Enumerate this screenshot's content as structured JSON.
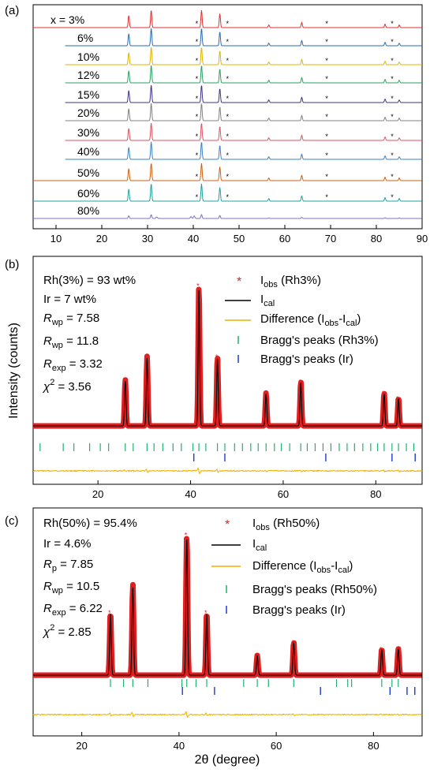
{
  "figure": {
    "xlabel": "2θ (degree)",
    "ylabel": "Intensity (counts)"
  },
  "chart_data": [
    {
      "panel": "(a)",
      "type": "line",
      "xlim": [
        5,
        90
      ],
      "x_ticks": [
        10,
        20,
        30,
        40,
        50,
        60,
        70,
        80,
        90
      ],
      "peaks_primary": [
        25.9,
        30.8,
        41.8,
        45.8,
        56.5,
        63.7,
        81.9,
        85.0
      ],
      "peaks_secondary": [
        40.8,
        47.5,
        69.2,
        83.5
      ],
      "series": [
        {
          "name": "x = 3%",
          "color": "#e03030",
          "x_start": 5
        },
        {
          "name": "6%",
          "color": "#2a6ab5",
          "x_start": 12
        },
        {
          "name": "10%",
          "color": "#e0b400",
          "x_start": 12
        },
        {
          "name": "12%",
          "color": "#2aa060",
          "x_start": 12
        },
        {
          "name": "15%",
          "color": "#40308a",
          "x_start": 12
        },
        {
          "name": "20%",
          "color": "#808080",
          "x_start": 12
        },
        {
          "name": "30%",
          "color": "#e05060",
          "x_start": 12
        },
        {
          "name": "40%",
          "color": "#3a80c8",
          "x_start": 12
        },
        {
          "name": "50%",
          "color": "#d06010",
          "x_start": 5
        },
        {
          "name": "60%",
          "color": "#20a0a0",
          "x_start": 5
        },
        {
          "name": "80%",
          "color": "#8070c0",
          "x_start": 5
        }
      ]
    },
    {
      "panel": "(b)",
      "type": "line",
      "xlim": [
        6,
        90
      ],
      "x_ticks": [
        20,
        40,
        60,
        80
      ],
      "annotations": [
        "Rh(3%) = 93 wt%",
        "Ir = 7 wt%",
        "R",
        "wp",
        " = 7.58",
        "R",
        "wp",
        " = 11.8",
        "R",
        "exp",
        " = 3.32",
        "χ",
        "2",
        " = 3.56"
      ],
      "legend": [
        "I",
        "obs",
        " (Rh3%)",
        "I",
        "cal",
        "Difference (I",
        "obs",
        "-I",
        "cal",
        ")",
        "Bragg's peaks (Rh3%)",
        "Bragg's peaks (Ir)"
      ],
      "peaks": [
        25.9,
        30.6,
        41.8,
        45.8,
        56.3,
        63.8,
        81.8,
        84.9
      ],
      "peak_heights": [
        0.28,
        0.42,
        0.85,
        0.42,
        0.2,
        0.27,
        0.2,
        0.17
      ],
      "bragg_rh": [
        7.5,
        12.5,
        14.8,
        18.2,
        20.5,
        22.3,
        25.9,
        27.6,
        30.6,
        32.1,
        34.0,
        36.2,
        38.0,
        40.5,
        41.8,
        43.3,
        45.8,
        47.4,
        49.5,
        51.2,
        53.0,
        54.6,
        56.3,
        58.1,
        59.6,
        61.4,
        63.8,
        65.2,
        66.9,
        68.6,
        70.3,
        72.1,
        73.8,
        75.4,
        77.2,
        78.9,
        80.4,
        81.8,
        83.5,
        84.9,
        86.6,
        88.2
      ],
      "bragg_ir": [
        40.7,
        47.4,
        69.2,
        83.5,
        88.5
      ],
      "colors": {
        "obs": "#e02020",
        "cal": "#000000",
        "diff": "#f0b000",
        "bragg_rh": "#20b070",
        "bragg_ir": "#1a3ad0"
      }
    },
    {
      "panel": "(c)",
      "type": "line",
      "xlim": [
        10,
        90
      ],
      "x_ticks": [
        20,
        40,
        60,
        80
      ],
      "annotations": [
        "Rh(50%) = 95.4%",
        "Ir = 4.6%",
        "R",
        "p",
        " = 7.85",
        "R",
        "wp",
        " = 10.5",
        "R",
        "exp",
        " = 6.22",
        "χ",
        "2",
        " = 2.85"
      ],
      "legend": [
        "I",
        "obs",
        " (Rh50%)",
        "I",
        "cal",
        "Difference (I",
        "obs",
        "-I",
        "cal",
        ")",
        "Bragg's peaks (Rh50%)",
        "Bragg's peaks (Ir)"
      ],
      "peaks": [
        25.9,
        30.5,
        41.6,
        45.7,
        56.1,
        63.6,
        81.7,
        85.1
      ],
      "peak_heights": [
        0.38,
        0.55,
        0.85,
        0.38,
        0.12,
        0.2,
        0.16,
        0.16
      ],
      "bragg_rh": [
        25.9,
        28.6,
        30.5,
        33.6,
        40.6,
        41.6,
        43.5,
        45.7,
        53.3,
        56.1,
        58.4,
        63.6,
        72.4,
        74.7,
        75.5,
        81.7,
        83.8,
        85.1
      ],
      "bragg_ir": [
        40.7,
        47.3,
        69.1,
        83.4,
        86.9,
        88.5
      ],
      "colors": {
        "obs": "#e02020",
        "cal": "#000000",
        "diff": "#f0b000",
        "bragg_rh": "#20b070",
        "bragg_ir": "#1a3ad0"
      }
    }
  ]
}
